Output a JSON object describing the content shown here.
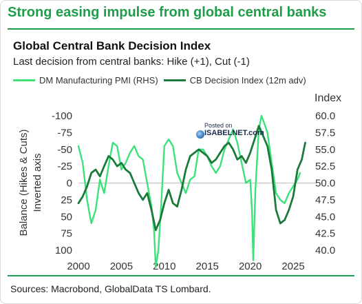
{
  "header": {
    "title": "Strong easing impulse from global central banks"
  },
  "footer": {
    "source": "Sources: Macrobond, GlobalData TS Lombard."
  },
  "watermark": {
    "line1": "Posted on",
    "line2": "ISABELNET.com",
    "icon": "globe-icon"
  },
  "colors": {
    "accent": "#1f9d4a",
    "pmi": "#3ee07a",
    "cb": "#1a7a3a"
  },
  "chart_data": {
    "type": "line",
    "title": "Global Central Bank Decision Index",
    "subtitle": "Last decision from central banks: Hike (+1), Cut (-1)",
    "ylabel_left": "Balance (Hikes & Cuts)",
    "ylabel_left_note": "Inverted axis",
    "ylabel_right": "Index",
    "x_ticks": [
      "2000",
      "2005",
      "2010",
      "2015",
      "2020",
      "2025"
    ],
    "xlim": [
      2000,
      2027
    ],
    "left_ticks": [
      "-100",
      "-75",
      "-50",
      "-25",
      "0",
      "25",
      "50",
      "75",
      "100"
    ],
    "ylim_left": [
      -100,
      100
    ],
    "left_inverted": true,
    "right_ticks": [
      "60.0",
      "57.5",
      "55.0",
      "52.5",
      "50.0",
      "47.5",
      "45.0",
      "42.5",
      "40.0"
    ],
    "ylim_right": [
      40,
      60
    ],
    "grid": false,
    "zero_line": true,
    "legend_position": "top",
    "series": [
      {
        "name": "DM Manufacturing PMI (RHS)",
        "axis": "right",
        "x": [
          2000.0,
          2000.5,
          2001.0,
          2001.5,
          2002.0,
          2002.5,
          2003.0,
          2003.5,
          2004.0,
          2004.5,
          2005.0,
          2005.5,
          2006.0,
          2006.5,
          2007.0,
          2007.5,
          2008.0,
          2008.5,
          2008.8,
          2009.0,
          2009.3,
          2009.6,
          2010.0,
          2010.5,
          2011.0,
          2011.5,
          2012.0,
          2012.5,
          2013.0,
          2013.5,
          2014.0,
          2014.5,
          2015.0,
          2015.5,
          2016.0,
          2016.5,
          2017.0,
          2017.5,
          2018.0,
          2018.5,
          2019.0,
          2019.5,
          2020.0,
          2020.2,
          2020.35,
          2020.6,
          2021.0,
          2021.3,
          2021.6,
          2022.0,
          2022.5,
          2023.0,
          2023.5,
          2024.0,
          2024.5,
          2025.0,
          2025.5,
          2025.8
        ],
        "values": [
          55.5,
          53.0,
          47.5,
          44.0,
          46.0,
          50.5,
          48.5,
          52.5,
          56.0,
          55.5,
          52.0,
          53.0,
          54.5,
          55.5,
          54.0,
          53.5,
          50.0,
          46.5,
          43.0,
          37.5,
          40.0,
          46.0,
          55.5,
          56.5,
          55.5,
          51.5,
          50.0,
          48.5,
          50.5,
          51.0,
          55.0,
          55.0,
          54.0,
          52.5,
          51.5,
          52.5,
          55.0,
          56.5,
          58.0,
          56.0,
          53.0,
          50.0,
          50.5,
          46.0,
          38.5,
          49.0,
          58.0,
          60.0,
          59.0,
          57.5,
          53.0,
          48.5,
          47.5,
          47.0,
          48.5,
          49.5,
          50.5,
          51.5
        ]
      },
      {
        "name": "CB Decision Index (12m adv)",
        "axis": "left",
        "x": [
          2000.0,
          2000.5,
          2001.0,
          2001.5,
          2002.0,
          2002.5,
          2003.0,
          2003.5,
          2004.0,
          2004.5,
          2005.0,
          2005.5,
          2006.0,
          2006.5,
          2007.0,
          2007.5,
          2008.0,
          2008.5,
          2009.0,
          2009.5,
          2010.0,
          2010.5,
          2011.0,
          2011.5,
          2012.0,
          2012.5,
          2013.0,
          2013.5,
          2014.0,
          2014.5,
          2015.0,
          2015.5,
          2016.0,
          2016.5,
          2017.0,
          2017.5,
          2018.0,
          2018.5,
          2019.0,
          2019.5,
          2020.0,
          2020.5,
          2021.0,
          2021.5,
          2022.0,
          2022.5,
          2023.0,
          2023.5,
          2024.0,
          2024.5,
          2025.0,
          2025.5,
          2026.0,
          2026.4
        ],
        "values": [
          30,
          20,
          5,
          -15,
          -20,
          -10,
          -25,
          -40,
          -35,
          -25,
          -30,
          -20,
          -15,
          0,
          15,
          25,
          15,
          40,
          70,
          55,
          30,
          10,
          30,
          35,
          10,
          -20,
          -40,
          -45,
          -50,
          -45,
          -40,
          -30,
          -35,
          -45,
          -55,
          -60,
          -50,
          -35,
          -40,
          -30,
          -45,
          -65,
          -85,
          -70,
          -55,
          -20,
          40,
          60,
          55,
          40,
          20,
          -20,
          -35,
          -60
        ]
      }
    ]
  }
}
